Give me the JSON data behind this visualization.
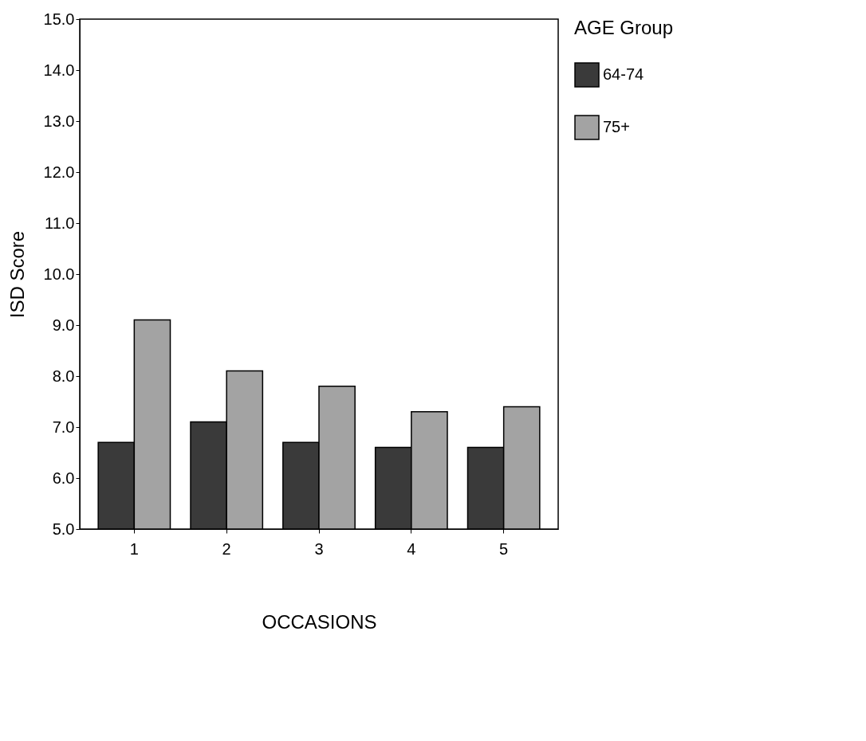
{
  "chart_data": {
    "type": "bar",
    "xlabel": "OCCASIONS",
    "ylabel": "ISD Score",
    "legend_title": "AGE Group",
    "legend": "right",
    "categories": [
      "1",
      "2",
      "3",
      "4",
      "5"
    ],
    "series": [
      {
        "name": "64-74",
        "color": "#3a3a3a",
        "values": [
          6.7,
          7.1,
          6.7,
          6.6,
          6.6
        ]
      },
      {
        "name": "75+",
        "color": "#a3a3a3",
        "values": [
          9.1,
          8.1,
          7.8,
          7.3,
          7.4
        ]
      }
    ],
    "ylim": [
      5,
      15
    ],
    "yticks": [
      {
        "value": 5,
        "label": "5.0"
      },
      {
        "value": 6,
        "label": "6.0"
      },
      {
        "value": 7,
        "label": "7.0"
      },
      {
        "value": 8,
        "label": "8.0"
      },
      {
        "value": 9,
        "label": "9.0"
      },
      {
        "value": 10,
        "label": "10.0"
      },
      {
        "value": 11,
        "label": "11.0"
      },
      {
        "value": 12,
        "label": "12.0"
      },
      {
        "value": 13,
        "label": "13.0"
      },
      {
        "value": 14,
        "label": "14.0"
      },
      {
        "value": 15,
        "label": "15.0"
      }
    ],
    "grid": false
  }
}
